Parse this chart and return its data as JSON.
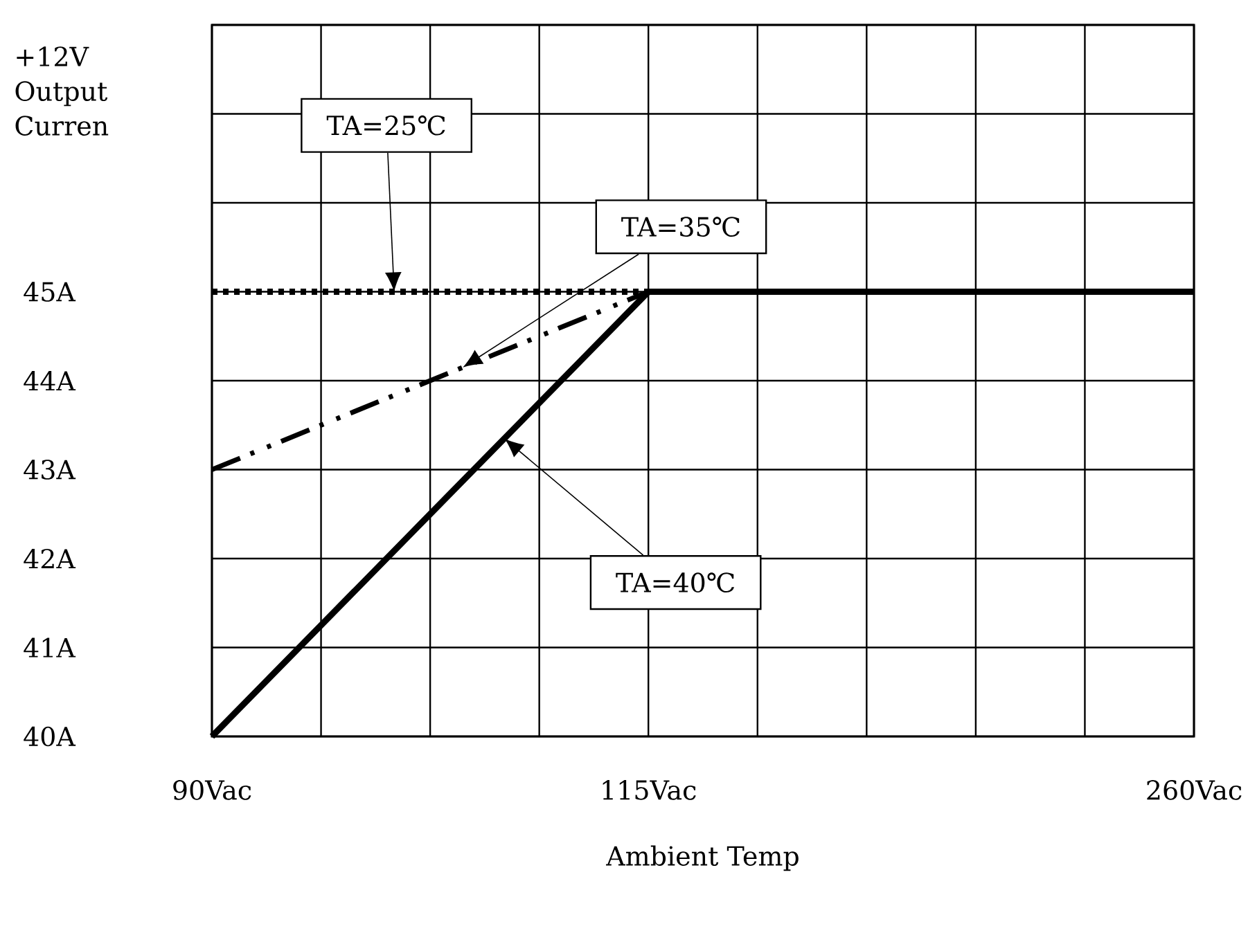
{
  "chart_data": {
    "type": "line",
    "xlabel": "Ambient Temp",
    "ylabel": "+12V Output Curren",
    "categories": [
      "90Vac",
      null,
      null,
      null,
      "115Vac",
      null,
      null,
      null,
      null,
      "260Vac"
    ],
    "ylim": [
      40,
      48
    ],
    "yticks": [
      {
        "value": 40,
        "label": "40A"
      },
      {
        "value": 41,
        "label": "41A"
      },
      {
        "value": 42,
        "label": "42A"
      },
      {
        "value": 43,
        "label": "43A"
      },
      {
        "value": 44,
        "label": "44A"
      },
      {
        "value": 45,
        "label": "45A"
      },
      {
        "value": 46,
        "label": null
      },
      {
        "value": 47,
        "label": null
      },
      {
        "value": 48,
        "label": null
      }
    ],
    "grid": true,
    "marker": "none",
    "series": [
      {
        "name": "TA=25℃",
        "color": "#000000",
        "line_style": "dotted",
        "values": [
          45,
          45,
          45,
          45,
          45,
          null,
          null,
          null,
          null,
          null
        ]
      },
      {
        "name": "TA=35℃",
        "color": "#000000",
        "line_style": "dashdot",
        "values": [
          43,
          43.5,
          44,
          44.5,
          45,
          null,
          null,
          null,
          null,
          null
        ]
      },
      {
        "name": "TA=40℃",
        "color": "#000000",
        "line_style": "solid",
        "values": [
          40,
          41.25,
          42.5,
          43.75,
          45,
          45,
          45,
          45,
          45,
          45
        ]
      }
    ]
  }
}
